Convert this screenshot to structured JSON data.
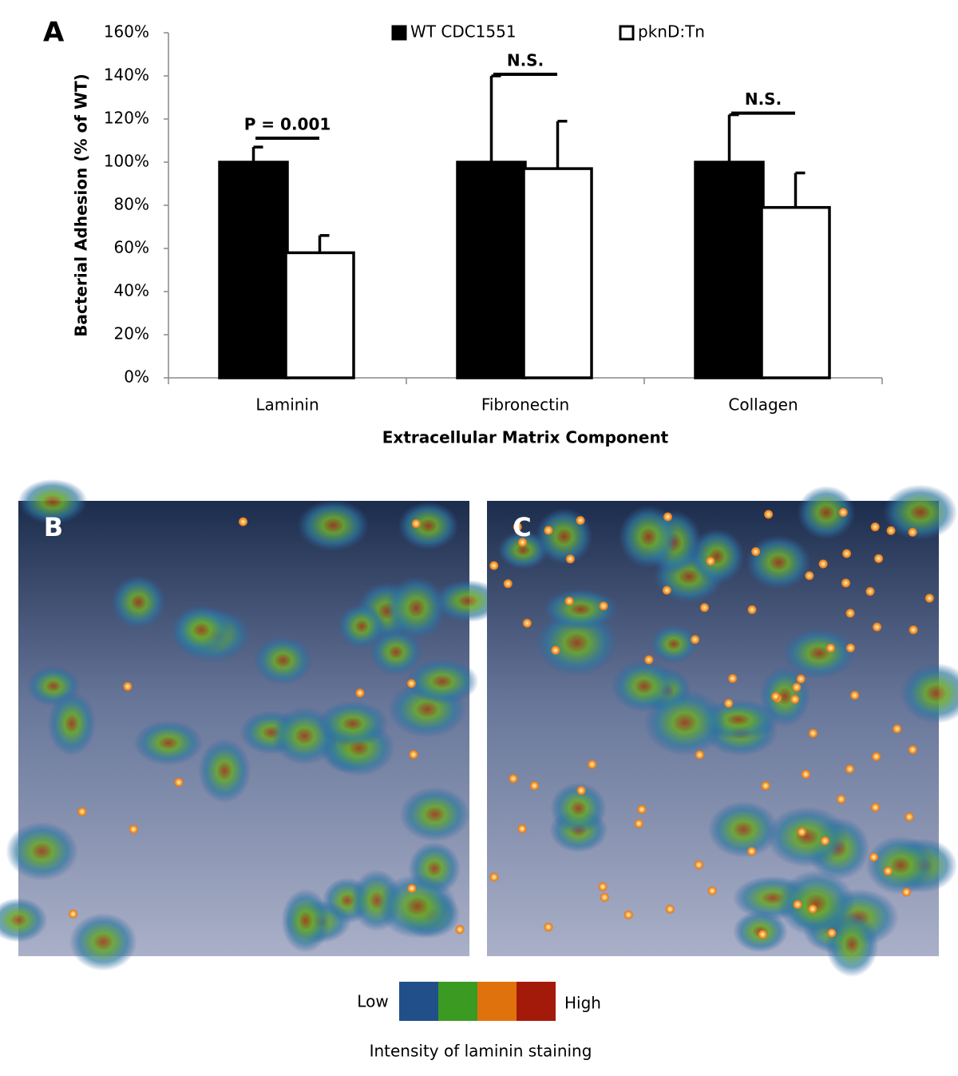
{
  "chart_data": {
    "type": "bar",
    "panel_label": "A",
    "y_label": "Bacterial Adhesion  (% of WT)",
    "x_label": "Extracellular Matrix Component",
    "categories": [
      "Laminin",
      "Fibronectin",
      "Collagen"
    ],
    "series": [
      {
        "name": "WT CDC1551",
        "color": "#000000",
        "values": [
          100,
          100,
          100
        ],
        "errors": [
          7,
          40,
          22
        ]
      },
      {
        "name": "pknD:Tn",
        "color": "#ffffff",
        "values": [
          58,
          97,
          79
        ],
        "errors": [
          8,
          22,
          16
        ]
      }
    ],
    "annotations": [
      "P = 0.001",
      "N.S.",
      "N.S."
    ],
    "ylim": [
      0,
      160
    ],
    "yticks": [
      {
        "value": 0,
        "label": "0%"
      },
      {
        "value": 20,
        "label": "20%"
      },
      {
        "value": 40,
        "label": "40%"
      },
      {
        "value": 60,
        "label": "60%"
      },
      {
        "value": 80,
        "label": "80%"
      },
      {
        "value": 100,
        "label": "100%"
      },
      {
        "value": 120,
        "label": "120%"
      },
      {
        "value": 140,
        "label": "140%"
      },
      {
        "value": 160,
        "label": "160%"
      }
    ],
    "grid": false,
    "legend": "top"
  },
  "images": [
    {
      "label": "B"
    },
    {
      "label": "C"
    }
  ],
  "colorbar": {
    "low": "Low",
    "high": "High",
    "caption": "Intensity of laminin staining",
    "colors": [
      "#214f8a",
      "#3a9a22",
      "#e0720e",
      "#a41a0a"
    ]
  }
}
